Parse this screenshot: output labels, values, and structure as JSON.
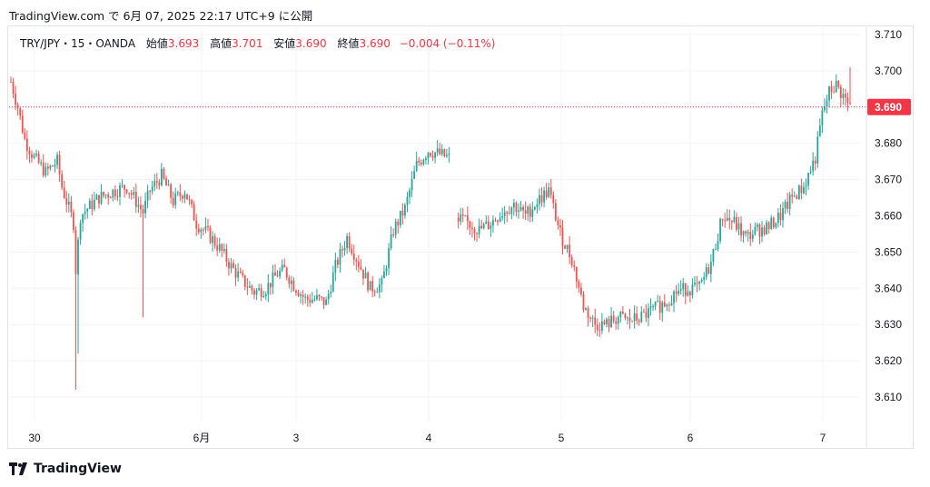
{
  "header": {
    "publish_line": "TradingView.com で 6月 07, 2025 22:17 UTC+9 に公開"
  },
  "legend": {
    "symbol": "TRY/JPY・15・OANDA",
    "open_label": "始値",
    "open_value": "3.693",
    "high_label": "高値",
    "high_value": "3.701",
    "low_label": "安値",
    "low_value": "3.690",
    "close_label": "終値",
    "close_value": "3.690",
    "change": "−0.004 (−0.11%)"
  },
  "footer": {
    "logo_text": "TradingView"
  },
  "colors": {
    "up": "#26a69a",
    "down": "#ef5350",
    "price_tag": "#f23645"
  },
  "chart_data": {
    "type": "candlestick",
    "y_ticks": [
      "3.710",
      "3.700",
      "3.690",
      "3.680",
      "3.670",
      "3.660",
      "3.650",
      "3.640",
      "3.630",
      "3.620",
      "3.610"
    ],
    "ylim": [
      3.605,
      3.712
    ],
    "x_ticks": [
      "30",
      "6月",
      "3",
      "4",
      "5",
      "6",
      "7"
    ],
    "current_price": 3.69,
    "current_price_label": "3.690",
    "anchors": [
      [
        0,
        3.697
      ],
      [
        3,
        3.69
      ],
      [
        6,
        3.681
      ],
      [
        10,
        3.676
      ],
      [
        15,
        3.672
      ],
      [
        20,
        3.675
      ],
      [
        22,
        3.668
      ],
      [
        25,
        3.662
      ],
      [
        27,
        3.658
      ],
      [
        28,
        3.645
      ],
      [
        30,
        3.66
      ],
      [
        33,
        3.662
      ],
      [
        38,
        3.665
      ],
      [
        45,
        3.667
      ],
      [
        50,
        3.668
      ],
      [
        55,
        3.663
      ],
      [
        57,
        3.661
      ],
      [
        60,
        3.667
      ],
      [
        65,
        3.671
      ],
      [
        70,
        3.664
      ],
      [
        75,
        3.667
      ],
      [
        80,
        3.658
      ],
      [
        85,
        3.655
      ],
      [
        90,
        3.651
      ],
      [
        95,
        3.646
      ],
      [
        100,
        3.642
      ],
      [
        105,
        3.639
      ],
      [
        110,
        3.64
      ],
      [
        115,
        3.644
      ],
      [
        118,
        3.645
      ],
      [
        122,
        3.641
      ],
      [
        127,
        3.637
      ],
      [
        132,
        3.637
      ],
      [
        136,
        3.636
      ],
      [
        140,
        3.646
      ],
      [
        145,
        3.654
      ],
      [
        150,
        3.647
      ],
      [
        155,
        3.64
      ],
      [
        160,
        3.641
      ],
      [
        165,
        3.656
      ],
      [
        170,
        3.662
      ],
      [
        175,
        3.674
      ],
      [
        180,
        3.678
      ],
      [
        185,
        3.677
      ],
      [
        189,
        3.676
      ],
      [
        192,
        null
      ],
      [
        193,
        3.659
      ],
      [
        197,
        3.658
      ],
      [
        202,
        3.656
      ],
      [
        207,
        3.658
      ],
      [
        212,
        3.661
      ],
      [
        217,
        3.663
      ],
      [
        222,
        3.66
      ],
      [
        227,
        3.664
      ],
      [
        232,
        3.667
      ],
      [
        237,
        3.655
      ],
      [
        242,
        3.648
      ],
      [
        247,
        3.635
      ],
      [
        252,
        3.63
      ],
      [
        257,
        3.63
      ],
      [
        262,
        3.632
      ],
      [
        267,
        3.631
      ],
      [
        272,
        3.632
      ],
      [
        277,
        3.634
      ],
      [
        282,
        3.636
      ],
      [
        287,
        3.639
      ],
      [
        292,
        3.64
      ],
      [
        297,
        3.64
      ],
      [
        302,
        3.647
      ],
      [
        307,
        3.66
      ],
      [
        312,
        3.658
      ],
      [
        317,
        3.654
      ],
      [
        322,
        3.656
      ],
      [
        327,
        3.657
      ],
      [
        332,
        3.66
      ],
      [
        337,
        3.665
      ],
      [
        342,
        3.668
      ],
      [
        347,
        3.676
      ],
      [
        350,
        3.688
      ],
      [
        353,
        3.694
      ],
      [
        356,
        3.696
      ],
      [
        359,
        3.693
      ],
      [
        362,
        3.69
      ]
    ],
    "bar_count": 363
  }
}
